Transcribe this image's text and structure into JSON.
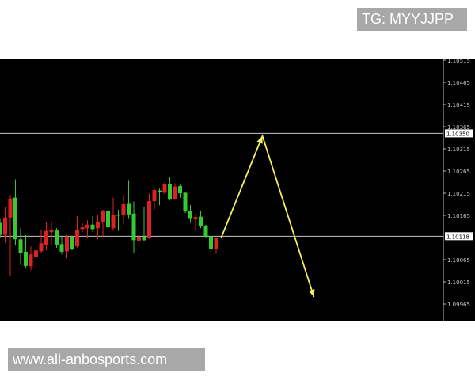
{
  "header": {
    "telegram_label": "TG: MYYJJPP"
  },
  "footer": {
    "website": "www.all-anbosports.com"
  },
  "colors": {
    "background": "#000000",
    "bull": "#33cc33",
    "bear": "#dd2222",
    "arrow": "#f0f060",
    "level_line": "#c8c8c8"
  },
  "chart_data": {
    "type": "candlestick",
    "title": "",
    "ylim": [
      1.09925,
      1.10525
    ],
    "yticks": [
      "1.10515",
      "1.10465",
      "1.10415",
      "1.10365",
      "1.10315",
      "1.10265",
      "1.10215",
      "1.10165",
      "1.10065",
      "1.10015",
      "1.09965"
    ],
    "price_levels": [
      {
        "label": "1.10350",
        "value": 1.1035
      },
      {
        "label": "1.10118",
        "value": 1.10118
      }
    ],
    "candles": [
      [
        1.10121,
        1.10157,
        1.10115,
        1.10148
      ],
      [
        1.1016,
        1.10184,
        1.10103,
        1.10121
      ],
      [
        1.10203,
        1.10211,
        1.10029,
        1.1016
      ],
      [
        1.10111,
        1.10246,
        1.10097,
        1.10205
      ],
      [
        1.1008,
        1.10136,
        1.10053,
        1.10111
      ],
      [
        1.10051,
        1.10121,
        1.10047,
        1.10083
      ],
      [
        1.10077,
        1.10095,
        1.10041,
        1.1005
      ],
      [
        1.10086,
        1.10092,
        1.10062,
        1.10071
      ],
      [
        1.10102,
        1.10133,
        1.1008,
        1.10084
      ],
      [
        1.1013,
        1.10151,
        1.10086,
        1.10099
      ],
      [
        1.10131,
        1.10151,
        1.10097,
        1.10127
      ],
      [
        1.10099,
        1.10136,
        1.10092,
        1.10131
      ],
      [
        1.10083,
        1.10118,
        1.10077,
        1.101
      ],
      [
        1.10117,
        1.10121,
        1.10068,
        1.10084
      ],
      [
        1.1009,
        1.10118,
        1.10086,
        1.10117
      ],
      [
        1.10133,
        1.10163,
        1.10092,
        1.10095
      ],
      [
        1.10138,
        1.10148,
        1.10127,
        1.10134
      ],
      [
        1.10144,
        1.10154,
        1.10115,
        1.10136
      ],
      [
        1.10134,
        1.10163,
        1.10128,
        1.10144
      ],
      [
        1.10151,
        1.10166,
        1.10111,
        1.10136
      ],
      [
        1.10175,
        1.10178,
        1.10118,
        1.1015
      ],
      [
        1.10138,
        1.10193,
        1.10106,
        1.10174
      ],
      [
        1.10167,
        1.10205,
        1.1013,
        1.10136
      ],
      [
        1.10165,
        1.10178,
        1.1013,
        1.10167
      ],
      [
        1.1019,
        1.10211,
        1.10145,
        1.10166
      ],
      [
        1.10167,
        1.10243,
        1.10157,
        1.10191
      ],
      [
        1.10109,
        1.10196,
        1.1008,
        1.10169
      ],
      [
        1.10117,
        1.10166,
        1.10068,
        1.10108
      ],
      [
        1.10109,
        1.10184,
        1.10106,
        1.10117
      ],
      [
        1.10197,
        1.10214,
        1.10112,
        1.10114
      ],
      [
        1.10222,
        1.10228,
        1.10178,
        1.10197
      ],
      [
        1.10218,
        1.10225,
        1.10188,
        1.10221
      ],
      [
        1.10236,
        1.1024,
        1.10212,
        1.10216
      ],
      [
        1.10202,
        1.10252,
        1.10199,
        1.10236
      ],
      [
        1.1023,
        1.10237,
        1.102,
        1.10202
      ],
      [
        1.10215,
        1.10234,
        1.10205,
        1.10231
      ],
      [
        1.10174,
        1.10218,
        1.1017,
        1.10216
      ],
      [
        1.10157,
        1.10188,
        1.10148,
        1.10174
      ],
      [
        1.10161,
        1.10168,
        1.1013,
        1.10156
      ],
      [
        1.1014,
        1.10176,
        1.10136,
        1.10162
      ],
      [
        1.10118,
        1.10144,
        1.10115,
        1.10142
      ],
      [
        1.1009,
        1.1012,
        1.10077,
        1.10118
      ],
      [
        1.10114,
        1.10115,
        1.10078,
        1.1009
      ]
    ],
    "candle_fields": [
      "open",
      "high",
      "low",
      "close"
    ],
    "projection_path": [
      [
        43,
        1.10115
      ],
      [
        51,
        1.10344
      ],
      [
        61,
        1.09981
      ]
    ]
  }
}
